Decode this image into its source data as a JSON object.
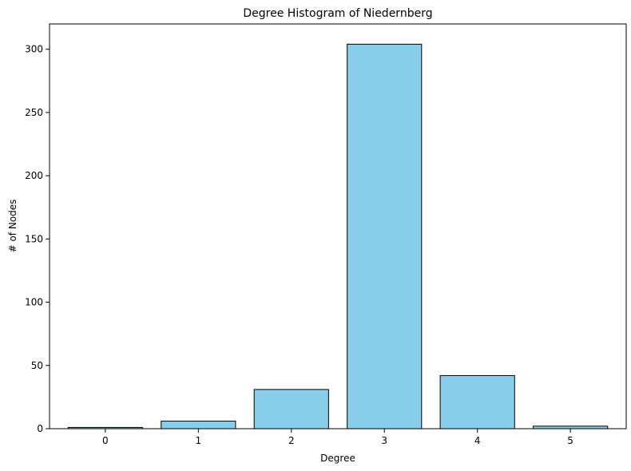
{
  "chart_data": {
    "type": "bar",
    "title": "Degree Histogram of Niedernberg",
    "xlabel": "Degree",
    "ylabel": "# of Nodes",
    "categories": [
      "0",
      "1",
      "2",
      "3",
      "4",
      "5"
    ],
    "values": [
      1,
      6,
      31,
      304,
      42,
      2
    ],
    "ylim": [
      0,
      320
    ],
    "yticks": [
      0,
      50,
      100,
      150,
      200,
      250,
      300
    ],
    "bar_color": "#87ceeb",
    "edge_color": "#000000",
    "grid": false,
    "legend": false
  }
}
